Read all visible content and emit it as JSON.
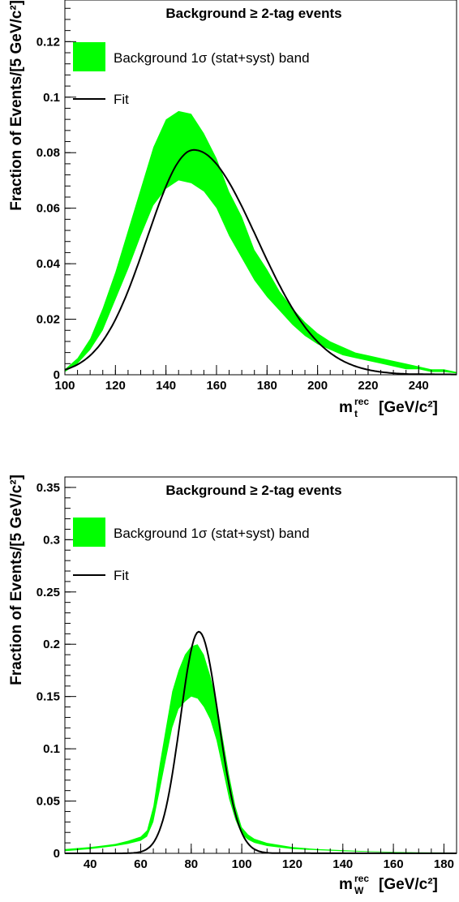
{
  "colors": {
    "band": "#00ff00",
    "fit": "#000000",
    "frame": "#000000"
  },
  "chart_data": [
    {
      "type": "line",
      "title": "Background ≥ 2-tag events",
      "ylabel": "Fraction of Events/[5 GeV/c²]",
      "xlabel_main": "m",
      "xlabel_sub": "t",
      "xlabel_sup": "rec",
      "xlabel_unit": "[GeV/c²]",
      "xlim": [
        100,
        255
      ],
      "ylim": [
        0,
        0.135
      ],
      "x_ticks": [
        100,
        120,
        140,
        160,
        180,
        200,
        220,
        240
      ],
      "x_tick_labels": [
        "100",
        "120",
        "140",
        "160",
        "180",
        "200",
        "220",
        "240"
      ],
      "y_ticks": [
        0,
        0.02,
        0.04,
        0.06,
        0.08,
        0.1,
        0.12
      ],
      "y_tick_labels": [
        "0",
        "0.02",
        "0.04",
        "0.06",
        "0.08",
        "0.1",
        "0.12"
      ],
      "legend": {
        "band_label": "Background 1σ (stat+syst) band",
        "fit_label": "Fit"
      },
      "band": {
        "x": [
          100,
          105,
          110,
          115,
          120,
          125,
          130,
          135,
          140,
          145,
          150,
          155,
          160,
          165,
          170,
          175,
          180,
          185,
          190,
          195,
          200,
          205,
          210,
          215,
          220,
          225,
          230,
          235,
          240,
          245,
          250,
          255
        ],
        "upper": [
          0.002,
          0.006,
          0.013,
          0.024,
          0.037,
          0.052,
          0.067,
          0.082,
          0.092,
          0.095,
          0.094,
          0.087,
          0.078,
          0.066,
          0.057,
          0.045,
          0.038,
          0.03,
          0.024,
          0.019,
          0.015,
          0.012,
          0.01,
          0.008,
          0.007,
          0.006,
          0.005,
          0.004,
          0.003,
          0.002,
          0.002,
          0.001
        ],
        "lower": [
          0.001,
          0.004,
          0.009,
          0.016,
          0.027,
          0.038,
          0.05,
          0.061,
          0.067,
          0.07,
          0.069,
          0.066,
          0.06,
          0.05,
          0.042,
          0.034,
          0.028,
          0.023,
          0.018,
          0.014,
          0.011,
          0.009,
          0.007,
          0.006,
          0.005,
          0.004,
          0.003,
          0.002,
          0.002,
          0.001,
          0.001,
          0.0005
        ]
      },
      "fit": {
        "model": "peak",
        "peak_x": 151,
        "peak_y": 0.081,
        "sigma_left": 18.5,
        "sigma_right": 25,
        "tail": 0.4
      }
    },
    {
      "type": "line",
      "title": "Background ≥ 2-tag events",
      "ylabel": "Fraction of Events/[5 GeV/c²]",
      "xlabel_main": "m",
      "xlabel_sub": "W",
      "xlabel_sup": "rec",
      "xlabel_unit": "[GeV/c²]",
      "xlim": [
        30,
        185
      ],
      "ylim": [
        0,
        0.36
      ],
      "x_ticks": [
        40,
        60,
        80,
        100,
        120,
        140,
        160,
        180
      ],
      "x_tick_labels": [
        "40",
        "60",
        "80",
        "100",
        "120",
        "140",
        "160",
        "180"
      ],
      "y_ticks": [
        0,
        0.05,
        0.1,
        0.15,
        0.2,
        0.25,
        0.3,
        0.35
      ],
      "y_tick_labels": [
        "0",
        "0.05",
        "0.1",
        "0.15",
        "0.2",
        "0.25",
        "0.3",
        "0.35"
      ],
      "legend": {
        "band_label": "Background 1σ (stat+syst) band",
        "fit_label": "Fit"
      },
      "band": {
        "x": [
          30,
          40,
          50,
          55,
          60,
          62.5,
          65,
          67.5,
          70,
          72.5,
          75,
          77.5,
          80,
          82.5,
          85,
          87.5,
          90,
          92.5,
          95,
          97.5,
          100,
          102.5,
          105,
          110,
          120,
          130,
          140,
          150,
          160,
          170,
          185
        ],
        "upper": [
          0.004,
          0.006,
          0.009,
          0.012,
          0.016,
          0.022,
          0.045,
          0.085,
          0.12,
          0.155,
          0.175,
          0.19,
          0.198,
          0.2,
          0.19,
          0.17,
          0.145,
          0.11,
          0.075,
          0.045,
          0.025,
          0.018,
          0.014,
          0.01,
          0.006,
          0.004,
          0.003,
          0.002,
          0.0015,
          0.001,
          0.0008
        ],
        "lower": [
          0.002,
          0.004,
          0.007,
          0.009,
          0.012,
          0.016,
          0.03,
          0.06,
          0.09,
          0.12,
          0.138,
          0.145,
          0.15,
          0.148,
          0.14,
          0.128,
          0.108,
          0.08,
          0.052,
          0.032,
          0.018,
          0.013,
          0.01,
          0.007,
          0.004,
          0.003,
          0.002,
          0.0015,
          0.001,
          0.0008,
          0.0005
        ]
      },
      "fit": {
        "model": "peak",
        "peak_x": 83,
        "peak_y": 0.212,
        "sigma_left": 7.3,
        "sigma_right": 7.8,
        "tail": 0.02
      }
    }
  ]
}
